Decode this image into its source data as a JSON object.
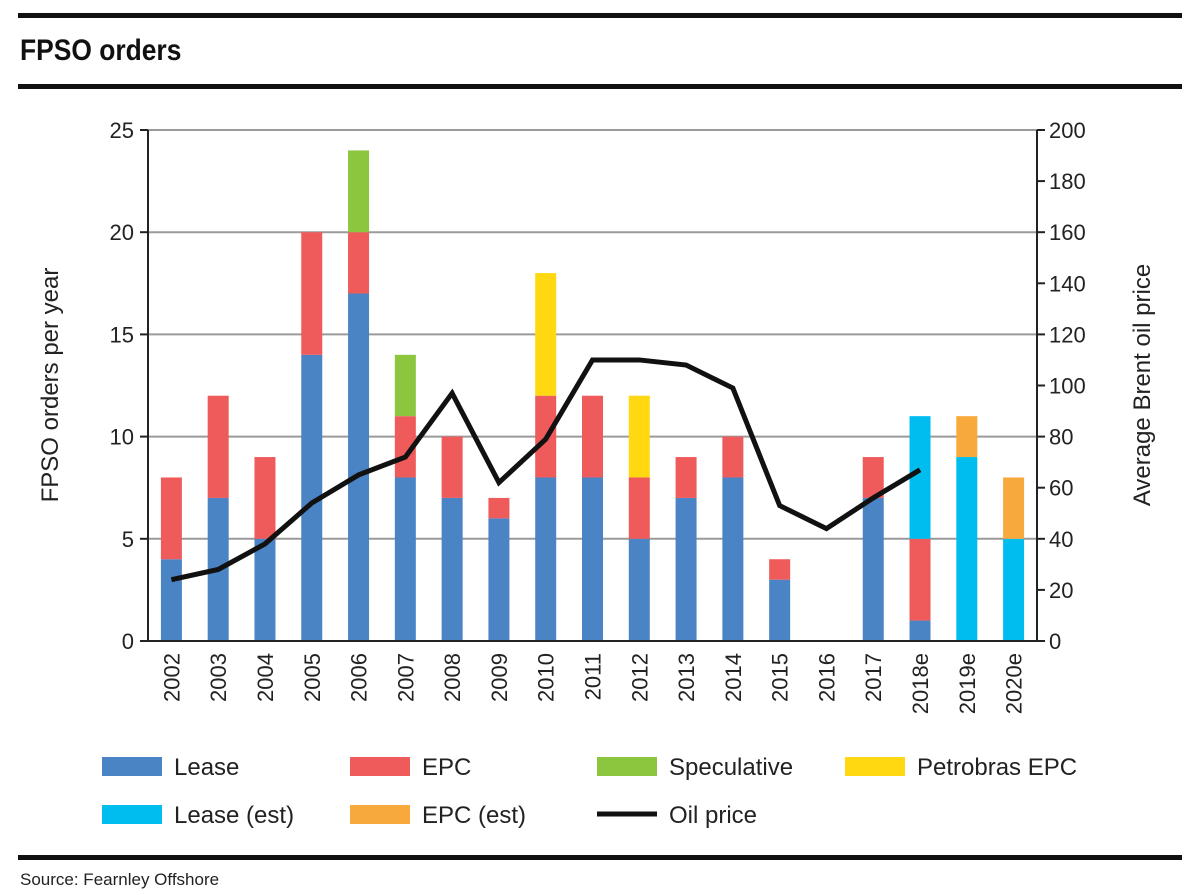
{
  "header": {
    "title": "FPSO orders"
  },
  "footer": {
    "source": "Source: Fearnley Offshore"
  },
  "chart_data": {
    "type": "bar",
    "stacked": true,
    "categories": [
      "2002",
      "2003",
      "2004",
      "2005",
      "2006",
      "2007",
      "2008",
      "2009",
      "2010",
      "2011",
      "2012",
      "2013",
      "2014",
      "2015",
      "2016",
      "2017",
      "2018e",
      "2019e",
      "2020e"
    ],
    "series": [
      {
        "name": "Lease",
        "color": "#4a84c4",
        "values": [
          4,
          7,
          5,
          14,
          17,
          8,
          7,
          6,
          8,
          8,
          5,
          7,
          8,
          3,
          0,
          7,
          1,
          0,
          0
        ]
      },
      {
        "name": "EPC",
        "color": "#ef5a5a",
        "values": [
          4,
          5,
          4,
          6,
          3,
          3,
          3,
          1,
          4,
          4,
          3,
          2,
          2,
          1,
          0,
          2,
          4,
          0,
          0
        ]
      },
      {
        "name": "Speculative",
        "color": "#8cc63f",
        "values": [
          0,
          0,
          0,
          0,
          4,
          3,
          0,
          0,
          0,
          0,
          0,
          0,
          0,
          0,
          0,
          0,
          0,
          0,
          0
        ]
      },
      {
        "name": "Petrobras EPC",
        "color": "#ffd811",
        "values": [
          0,
          0,
          0,
          0,
          0,
          0,
          0,
          0,
          6,
          0,
          4,
          0,
          0,
          0,
          0,
          0,
          0,
          0,
          0
        ]
      },
      {
        "name": "Lease (est)",
        "color": "#00bdf0",
        "values": [
          0,
          0,
          0,
          0,
          0,
          0,
          0,
          0,
          0,
          0,
          0,
          0,
          0,
          0,
          0,
          0,
          6,
          9,
          5
        ]
      },
      {
        "name": "EPC (est)",
        "color": "#f8a93c",
        "values": [
          0,
          0,
          0,
          0,
          0,
          0,
          0,
          0,
          0,
          0,
          0,
          0,
          0,
          0,
          0,
          0,
          0,
          2,
          3
        ]
      }
    ],
    "line_series": {
      "name": "Oil price",
      "color": "#111111",
      "axis": "right",
      "values": [
        24,
        28,
        38,
        54,
        65,
        72,
        97,
        62,
        79,
        110,
        110,
        108,
        99,
        53,
        44,
        56,
        67,
        null,
        null
      ]
    },
    "ylabel": "FPSO orders per year",
    "y2label": "Average Brent oil price",
    "ylim": [
      0,
      25
    ],
    "yticks": [
      0,
      5,
      10,
      15,
      20,
      25
    ],
    "y2lim": [
      0,
      200
    ],
    "y2ticks": [
      0,
      20,
      40,
      60,
      80,
      100,
      120,
      140,
      160,
      180,
      200
    ],
    "grid": true,
    "legend_position": "bottom"
  }
}
